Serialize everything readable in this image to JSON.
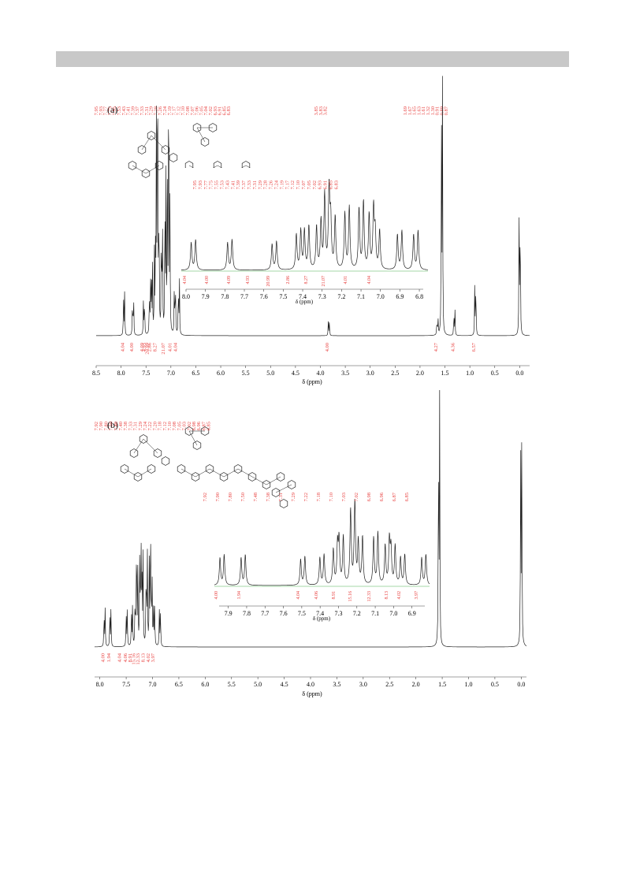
{
  "panels": [
    {
      "label": "(a)",
      "xlabel": "δ (ppm)",
      "ticks": [
        "8.5",
        "8.0",
        "7.5",
        "7.0",
        "6.5",
        "6.0",
        "5.5",
        "5.0",
        "4.5",
        "4.0",
        "3.5",
        "3.0",
        "2.5",
        "2.0",
        "1.5",
        "1.0",
        "0.5",
        "0.0"
      ],
      "peak_labels_left": [
        "7.95",
        "7.93",
        "7.77",
        "7.75",
        "7.55",
        "7.53",
        "7.43",
        "7.41",
        "7.39",
        "7.37",
        "7.33",
        "7.31",
        "7.29",
        "7.28",
        "7.26",
        "7.24",
        "7.19",
        "7.17",
        "7.12",
        "7.10",
        "7.08",
        "7.07",
        "7.06",
        "7.05",
        "7.04",
        "7.02",
        "6.93",
        "6.91",
        "6.85",
        "6.83"
      ],
      "peak_labels_mid": [
        "3.85",
        "3.83",
        "3.82"
      ],
      "peak_labels_right": [
        "1.69",
        "1.67",
        "1.65",
        "1.63",
        "1.61",
        "1.32",
        "1.30",
        "0.91",
        "0.89",
        "0.87"
      ],
      "integrals": [
        "4.04",
        "4.00",
        "4.09",
        "4.93",
        "20.99",
        "2.86",
        "8.27",
        "21.07",
        "4.01",
        "4.04",
        "4.00",
        "4.27",
        "4.36",
        "6.57"
      ],
      "inset": {
        "ticks": [
          "8.0",
          "7.9",
          "7.8",
          "7.7",
          "7.6",
          "7.5",
          "7.4",
          "7.3",
          "7.2",
          "7.1",
          "7.0",
          "6.9",
          "6.8"
        ],
        "xlabel": "δ (ppm)",
        "peak_labels": [
          "7.95",
          "7.93",
          "7.77",
          "7.75",
          "7.55",
          "7.53",
          "7.43",
          "7.41",
          "7.39",
          "7.37",
          "7.33",
          "7.31",
          "7.29",
          "7.28",
          "7.26",
          "7.24",
          "7.19",
          "7.17",
          "7.12",
          "7.10",
          "7.07",
          "7.05",
          "7.02",
          "6.93",
          "6.91",
          "6.85",
          "6.83"
        ],
        "integrals": [
          "4.04",
          "4.00",
          "4.09",
          "4.93",
          "20.99",
          "2.86",
          "8.27",
          "21.07",
          "4.01",
          "4.04"
        ]
      }
    },
    {
      "label": "(b)",
      "xlabel": "δ (ppm)",
      "ticks": [
        "8.0",
        "7.5",
        "7.0",
        "6.5",
        "6.0",
        "5.5",
        "5.0",
        "4.5",
        "4.0",
        "3.5",
        "3.0",
        "2.5",
        "2.0",
        "1.5",
        "1.0",
        "0.5",
        "0.0"
      ],
      "peak_labels_left": [
        "7.92",
        "7.90",
        "7.80",
        "7.50",
        "7.48",
        "7.40",
        "7.38",
        "7.33",
        "7.31",
        "7.29",
        "7.24",
        "7.22",
        "7.20",
        "7.18",
        "7.12",
        "7.10",
        "7.08",
        "7.05",
        "7.03",
        "7.02",
        "6.98",
        "6.96",
        "6.87",
        "6.85"
      ],
      "integrals": [
        "4.00",
        "1.94",
        "4.04",
        "4.06",
        "8.91",
        "15.16",
        "12.33",
        "8.13",
        "4.02",
        "3.97"
      ],
      "inset": {
        "ticks": [
          "7.9",
          "7.8",
          "7.7",
          "7.6",
          "7.5",
          "7.4",
          "7.3",
          "7.2",
          "7.1",
          "7.0",
          "6.9"
        ],
        "xlabel": "δ (ppm)",
        "peak_labels": [
          "7.92",
          "7.90",
          "7.80",
          "7.50",
          "7.48",
          "7.38",
          "7.31",
          "7.29",
          "7.22",
          "7.18",
          "7.10",
          "7.03",
          "7.02",
          "6.98",
          "6.96",
          "6.87",
          "6.85"
        ],
        "integrals": [
          "4.00",
          "1.94",
          "4.04",
          "4.06",
          "8.91",
          "15.16",
          "12.33",
          "8.13",
          "4.02",
          "3.97"
        ]
      }
    }
  ],
  "chart_data": [
    {
      "type": "line",
      "title": "(a)",
      "xlabel": "δ (ppm)",
      "ylabel": "",
      "xlim": [
        8.5,
        -0.2
      ],
      "x_reversed": true,
      "series": [
        {
          "values_x": [
            7.94,
            7.76,
            7.54,
            7.42,
            7.38,
            7.32,
            7.28,
            7.25,
            7.18,
            7.11,
            7.06,
            7.03,
            6.92,
            6.84,
            3.83,
            1.65,
            1.31,
            0.89,
            0.0,
            1.56
          ],
          "values_y": [
            0.17,
            0.17,
            0.16,
            0.2,
            0.26,
            0.35,
            0.92,
            0.55,
            0.52,
            0.62,
            0.66,
            0.58,
            0.24,
            0.23,
            0.06,
            0.07,
            0.1,
            0.22,
            0.55,
            1.0
          ]
        }
      ]
    },
    {
      "type": "line",
      "title": "(b)",
      "xlabel": "δ (ppm)",
      "ylabel": "",
      "xlim": [
        8.1,
        -0.1
      ],
      "x_reversed": true,
      "series": [
        {
          "values_x": [
            7.91,
            7.8,
            7.49,
            7.39,
            7.32,
            7.29,
            7.23,
            7.19,
            7.11,
            7.05,
            7.02,
            6.97,
            6.86,
            1.56,
            0.0
          ],
          "values_y": [
            0.15,
            0.15,
            0.15,
            0.16,
            0.22,
            0.3,
            0.46,
            0.36,
            0.38,
            0.36,
            0.3,
            0.17,
            0.16,
            1.0,
            0.9
          ]
        }
      ]
    }
  ]
}
